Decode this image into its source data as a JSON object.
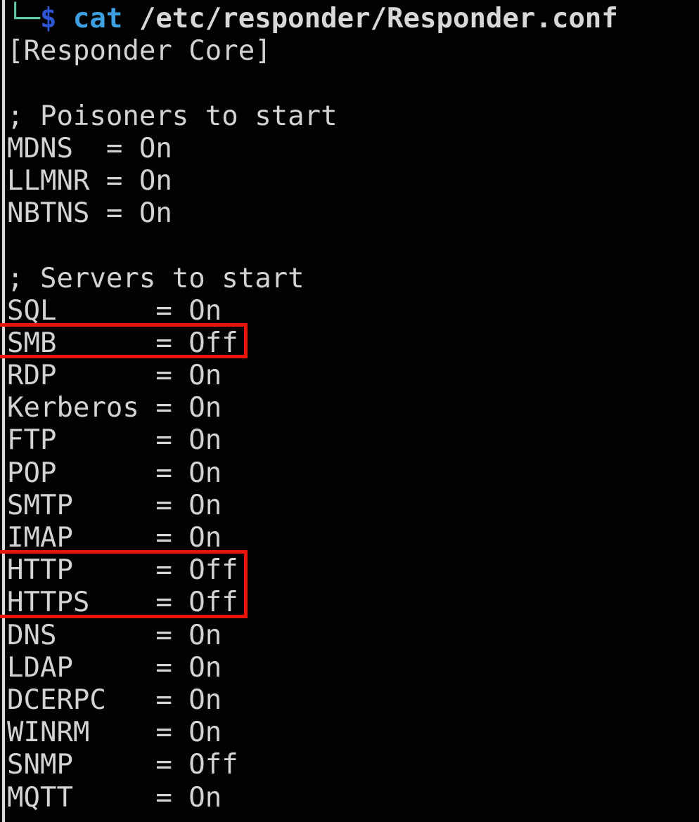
{
  "terminal": {
    "prompt": {
      "corner": "└─",
      "dollar": "$",
      "command": "cat",
      "argument": "/etc/responder/Responder.conf"
    },
    "config": {
      "section_header": "[Responder Core]",
      "poisoners": {
        "comment": "; Poisoners to start",
        "pad": 6,
        "entries": [
          {
            "name": "MDNS",
            "value": "On"
          },
          {
            "name": "LLMNR",
            "value": "On"
          },
          {
            "name": "NBTNS",
            "value": "On"
          }
        ]
      },
      "servers": {
        "comment": "; Servers to start",
        "pad": 9,
        "entries": [
          {
            "name": "SQL",
            "value": "On"
          },
          {
            "name": "SMB",
            "value": "Off"
          },
          {
            "name": "RDP",
            "value": "On"
          },
          {
            "name": "Kerberos",
            "value": "On"
          },
          {
            "name": "FTP",
            "value": "On"
          },
          {
            "name": "POP",
            "value": "On"
          },
          {
            "name": "SMTP",
            "value": "On"
          },
          {
            "name": "IMAP",
            "value": "On"
          },
          {
            "name": "HTTP",
            "value": "Off"
          },
          {
            "name": "HTTPS",
            "value": "Off"
          },
          {
            "name": "DNS",
            "value": "On"
          },
          {
            "name": "LDAP",
            "value": "On"
          },
          {
            "name": "DCERPC",
            "value": "On"
          },
          {
            "name": "WINRM",
            "value": "On"
          },
          {
            "name": "SNMP",
            "value": "Off"
          },
          {
            "name": "MQTT",
            "value": "On"
          }
        ]
      }
    }
  },
  "annotations": {
    "color": "#e9150b",
    "groups": [
      [
        "SMB"
      ],
      [
        "HTTP",
        "HTTPS"
      ]
    ]
  },
  "colors": {
    "background": "#020202",
    "text": "#d3d3d3",
    "prompt_corner": "#61c7a1",
    "prompt_dollar": "#2d55d4",
    "prompt_command": "#3ea0e0",
    "highlight_red": "#e9150b",
    "window_edge": "#d9d9d9"
  }
}
